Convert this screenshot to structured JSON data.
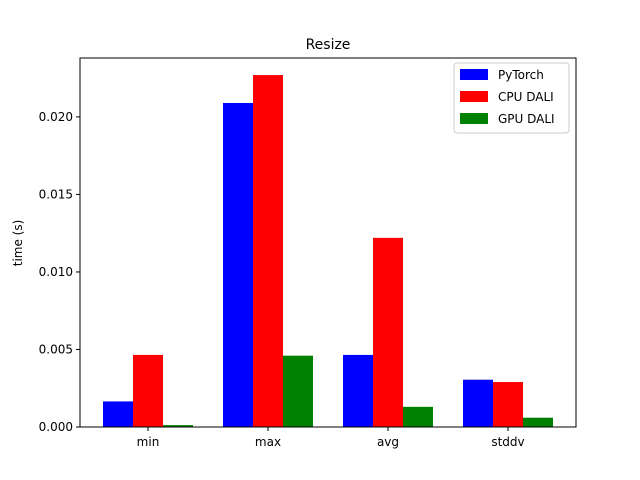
{
  "chart_data": {
    "type": "bar",
    "title": "Resize",
    "xlabel": "",
    "ylabel": "time (s)",
    "categories": [
      "min",
      "max",
      "avg",
      "stddv"
    ],
    "series": [
      {
        "name": "PyTorch",
        "color": "#0000ff",
        "values": [
          0.00165,
          0.0209,
          0.00465,
          0.00305
        ]
      },
      {
        "name": "CPU DALI",
        "color": "#ff0000",
        "values": [
          0.00465,
          0.0227,
          0.0122,
          0.0029
        ]
      },
      {
        "name": "GPU DALI",
        "color": "#008000",
        "values": [
          0.00012,
          0.0046,
          0.0013,
          0.0006
        ]
      }
    ],
    "ylim": [
      0,
      0.0238
    ],
    "yticks": [
      "0.000",
      "0.005",
      "0.010",
      "0.015",
      "0.020"
    ],
    "grid": false,
    "legend_position": "top-right"
  }
}
